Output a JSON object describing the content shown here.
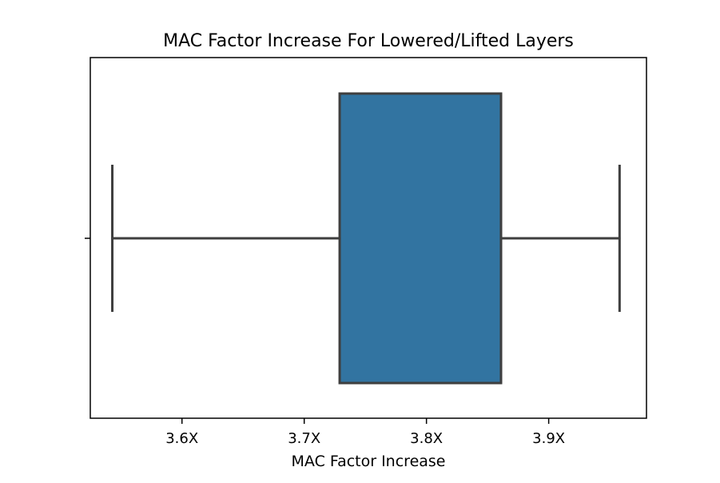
{
  "chart_data": {
    "type": "box",
    "title": "MAC Factor Increase For Lowered/Lifted Layers",
    "xlabel": "MAC Factor Increase",
    "ylabel": "",
    "xlim": [
      3.525,
      3.98
    ],
    "ticks": [
      {
        "value": 3.6,
        "label": "3.6X"
      },
      {
        "value": 3.7,
        "label": "3.7X"
      },
      {
        "value": 3.8,
        "label": "3.8X"
      },
      {
        "value": 3.9,
        "label": "3.9X"
      }
    ],
    "box": {
      "whisker_low": 3.543,
      "q1": 3.729,
      "median": 3.861,
      "q3": 3.861,
      "whisker_high": 3.958
    },
    "colors": {
      "box_fill": "#3274a1",
      "line": "#3f3f3f",
      "axes": "#000000"
    },
    "grid": false,
    "legend": "none"
  }
}
